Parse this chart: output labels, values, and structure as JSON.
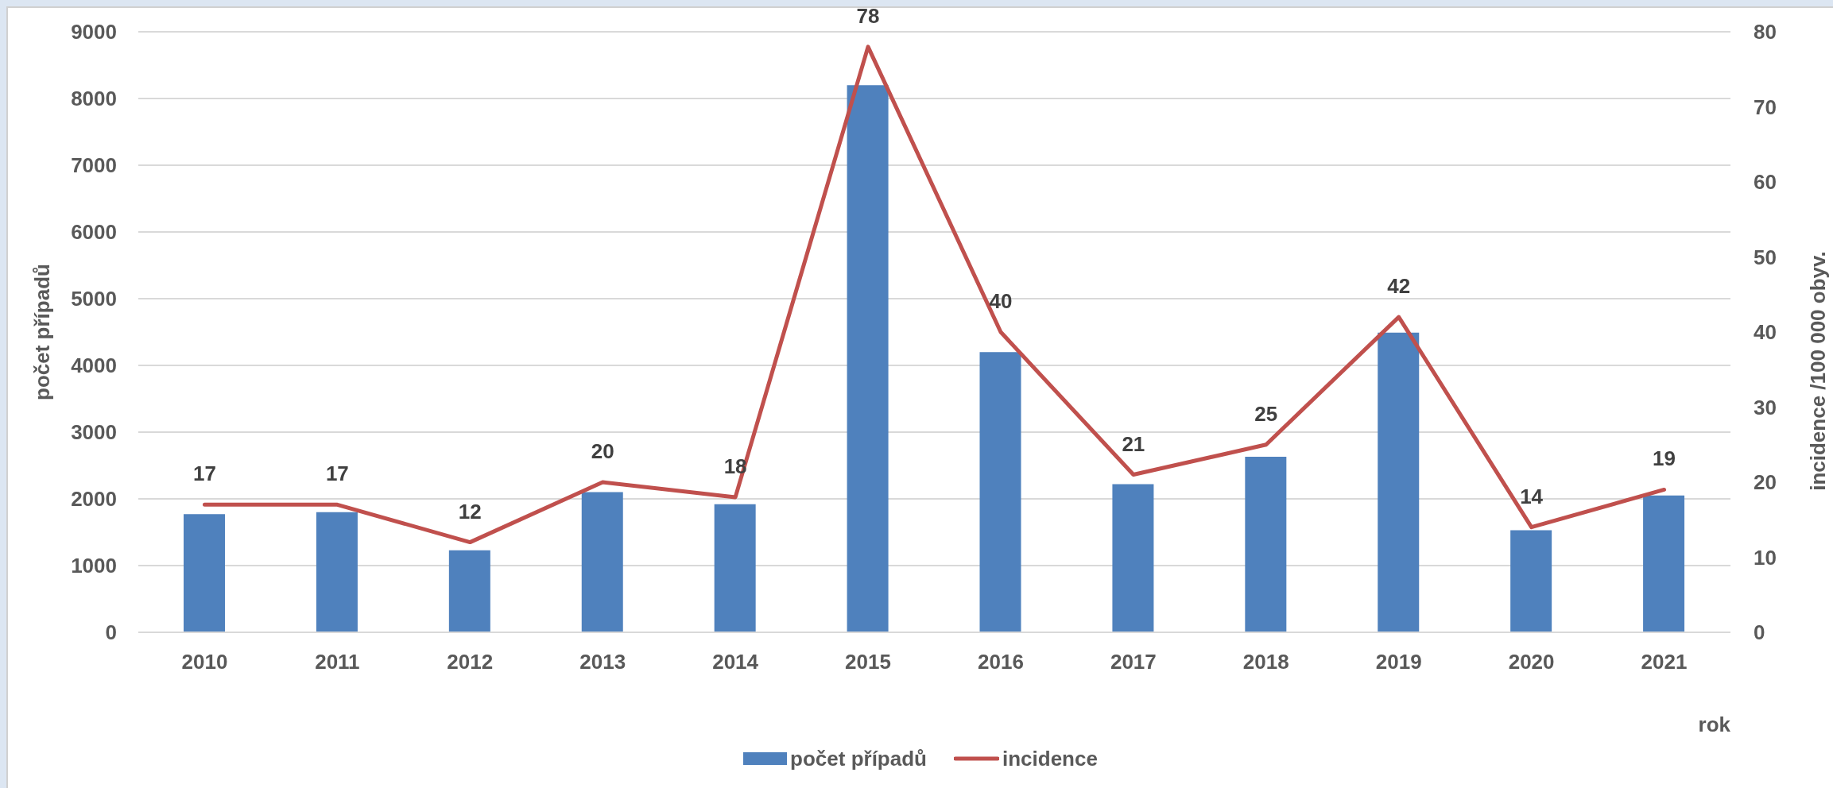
{
  "chart_data": {
    "type": "bar",
    "categories": [
      "2010",
      "2011",
      "2012",
      "2013",
      "2014",
      "2015",
      "2016",
      "2017",
      "2018",
      "2019",
      "2020",
      "2021"
    ],
    "xlabel": "rok",
    "ylabel": "počet případů",
    "y2label": "incidence /100 000 obyv.",
    "series": [
      {
        "name": "počet případů",
        "color": "#4f81bd",
        "values": [
          1770,
          1800,
          1230,
          2100,
          1920,
          8200,
          4200,
          2220,
          2630,
          4490,
          1530,
          2050
        ]
      },
      {
        "name": "incidence",
        "type": "line",
        "axis": "y2",
        "color": "#c0504d",
        "data_labels": true,
        "values": [
          17,
          17,
          12,
          20,
          18,
          78,
          40,
          21,
          25,
          42,
          14,
          19
        ]
      }
    ],
    "ylim": [
      0,
      9000
    ],
    "yticks": [
      0,
      1000,
      2000,
      3000,
      4000,
      5000,
      6000,
      7000,
      8000,
      9000
    ],
    "y2lim": [
      0,
      80
    ],
    "y2ticks": [
      0,
      10,
      20,
      30,
      40,
      50,
      60,
      70,
      80
    ],
    "grid": "y",
    "legend": "bottom"
  }
}
